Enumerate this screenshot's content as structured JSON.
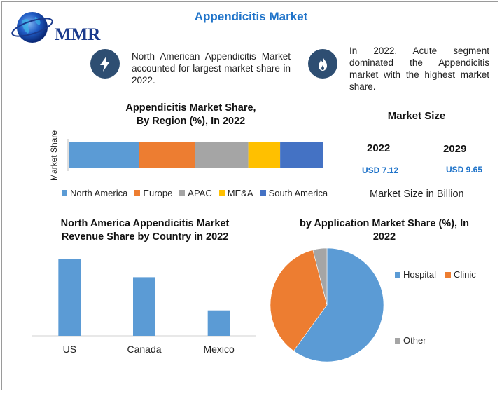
{
  "title": "Appendicitis Market",
  "logo": {
    "text": "MMR",
    "icon": "globe-icon"
  },
  "facts": [
    {
      "icon": "lightning-icon",
      "text": "North American Appendicitis Market accounted for largest market share in 2022."
    },
    {
      "icon": "flame-icon",
      "text": "In 2022, Acute segment dominated the Appendicitis market with the highest market share."
    }
  ],
  "market_size": {
    "heading": "Market Size",
    "years": [
      "2022",
      "2029"
    ],
    "values": [
      "USD 7.12",
      "USD 9.65"
    ],
    "caption": "Market Size in Billion"
  },
  "colors": {
    "blue": "#5b9bd5",
    "orange": "#ed7d31",
    "gray": "#a5a5a5",
    "yellow": "#ffc000",
    "darkblue": "#4472c4",
    "accent": "#1f73c9"
  },
  "chart_data": [
    {
      "type": "bar",
      "orientation": "horizontal-stacked",
      "title": "Appendicitis Market Share,\nBy Region (%), In 2022",
      "title_lines": [
        "Appendicitis Market Share,",
        "By Region (%), In 2022"
      ],
      "ylabel": "Market Share",
      "xlim": [
        0,
        100
      ],
      "series": [
        {
          "name": "North America",
          "values": [
            27.5
          ],
          "color": "#5b9bd5"
        },
        {
          "name": "Europe",
          "values": [
            22
          ],
          "color": "#ed7d31"
        },
        {
          "name": "APAC",
          "values": [
            21
          ],
          "color": "#a5a5a5"
        },
        {
          "name": "ME&A",
          "values": [
            12.5
          ],
          "color": "#ffc000"
        },
        {
          "name": "South America",
          "values": [
            17
          ],
          "color": "#4472c4"
        }
      ],
      "legend": "bottom"
    },
    {
      "type": "bar",
      "title_lines": [
        "North America Appendicitis Market",
        "Revenue Share by Country in 2022"
      ],
      "categories": [
        "US",
        "Canada",
        "Mexico"
      ],
      "values": [
        100,
        76,
        33
      ],
      "ylim": [
        0,
        100
      ],
      "color": "#5b9bd5"
    },
    {
      "type": "pie",
      "title_lines": [
        "by Application Market Share (%), In",
        "2022"
      ],
      "labels": [
        "Hospital",
        "Clinic",
        "Other"
      ],
      "values": [
        60,
        36,
        4
      ],
      "colors": [
        "#5b9bd5",
        "#ed7d31",
        "#a5a5a5"
      ],
      "legend": "right"
    }
  ]
}
